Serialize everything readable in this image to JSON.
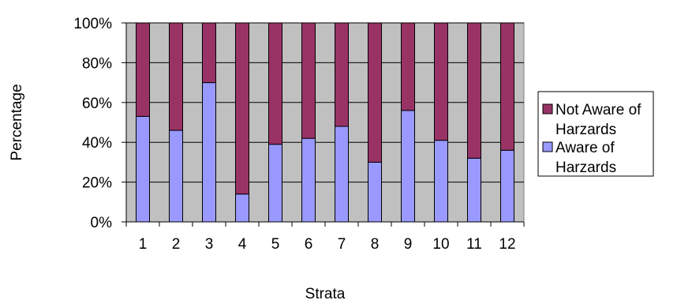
{
  "chart_data": {
    "type": "bar",
    "stacked": true,
    "normalized_percent": true,
    "categories": [
      "1",
      "2",
      "3",
      "4",
      "5",
      "6",
      "7",
      "8",
      "9",
      "10",
      "11",
      "12"
    ],
    "series": [
      {
        "name": "Aware of Harzards",
        "color": "#9999ff",
        "values": [
          53,
          46,
          70,
          14,
          39,
          42,
          48,
          30,
          56,
          41,
          32,
          36
        ]
      },
      {
        "name": "Not Aware of Harzards",
        "color": "#993366",
        "values": [
          47,
          54,
          30,
          86,
          61,
          58,
          52,
          70,
          44,
          59,
          68,
          64
        ]
      }
    ],
    "legend_entries": [
      {
        "lines": [
          "Not Aware of",
          "Harzards"
        ],
        "series": 1
      },
      {
        "lines": [
          "Aware of",
          "Harzards"
        ],
        "series": 0
      }
    ],
    "xlabel": "Strata",
    "ylabel": "Percentage",
    "ylim": [
      0,
      100
    ],
    "yticks": [
      "0%",
      "20%",
      "40%",
      "60%",
      "80%",
      "100%"
    ],
    "plot_background": "#c0c0c0",
    "grid": true,
    "legend_position": "right"
  }
}
